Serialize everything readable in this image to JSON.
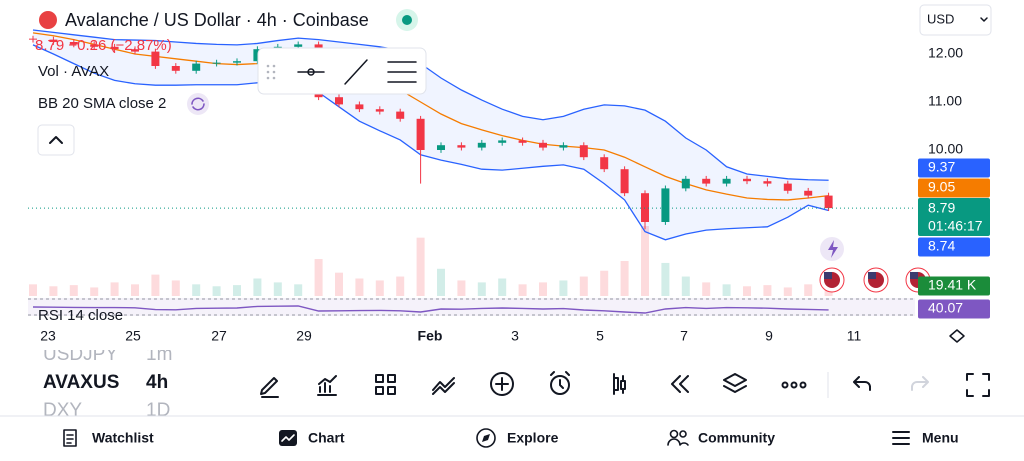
{
  "header": {
    "title": "Avalanche / US Dollar · 4h · Coinbase",
    "price_change": "8.79 −0.26 (−2.87%)",
    "volume_label": "Vol · AVAX",
    "bb_label": "BB 20 SMA close 2",
    "rsi_label": "RSI 14 close",
    "currency": "USD",
    "countdown": "01:46:17"
  },
  "chart": {
    "type": "candlestick",
    "yticks": [
      {
        "value": 12,
        "label": "12.00"
      },
      {
        "value": 11,
        "label": "11.00"
      },
      {
        "value": 10,
        "label": "10.00"
      }
    ],
    "x_labels": [
      "23",
      "25",
      "27",
      "29",
      "Feb",
      "3",
      "5",
      "7",
      "9",
      "11"
    ],
    "open": [
      12.32,
      12.3,
      12.25,
      12.2,
      12.15,
      12.1,
      12.05,
      11.75,
      11.65,
      11.8,
      11.82,
      11.85,
      12.1,
      12.15,
      12.2,
      11.1,
      10.95,
      10.85,
      10.8,
      10.65,
      10.0,
      10.1,
      10.05,
      10.15,
      10.2,
      10.15,
      10.05,
      10.1,
      9.85,
      9.6,
      9.1,
      8.5,
      9.2,
      9.4,
      9.3,
      9.4,
      9.35,
      9.3,
      9.15,
      9.05
    ],
    "high": [
      12.38,
      12.36,
      12.31,
      12.26,
      12.21,
      12.16,
      12.11,
      11.81,
      11.86,
      11.88,
      11.91,
      12.16,
      12.21,
      12.26,
      12.26,
      11.16,
      11.01,
      10.91,
      10.86,
      10.71,
      10.16,
      10.16,
      10.21,
      10.26,
      10.26,
      10.21,
      10.16,
      10.16,
      9.91,
      9.66,
      9.16,
      9.26,
      9.46,
      9.46,
      9.46,
      9.46,
      9.41,
      9.36,
      9.21,
      9.11
    ],
    "low": [
      12.24,
      12.19,
      12.14,
      12.09,
      12.04,
      11.99,
      11.69,
      11.59,
      11.59,
      11.74,
      11.76,
      11.79,
      12.04,
      12.09,
      11.04,
      10.89,
      10.79,
      10.74,
      10.59,
      9.3,
      9.94,
      9.99,
      9.99,
      10.09,
      10.09,
      9.99,
      9.99,
      9.79,
      9.54,
      9.04,
      8.35,
      8.44,
      9.14,
      9.24,
      9.24,
      9.29,
      9.24,
      9.09,
      8.99,
      8.73
    ],
    "close": [
      12.3,
      12.25,
      12.2,
      12.15,
      12.1,
      12.05,
      11.75,
      11.65,
      11.8,
      11.82,
      11.85,
      12.1,
      12.15,
      12.2,
      11.1,
      10.95,
      10.85,
      10.8,
      10.65,
      10.0,
      10.1,
      10.05,
      10.15,
      10.2,
      10.15,
      10.05,
      10.1,
      9.85,
      9.6,
      9.1,
      8.5,
      9.2,
      9.4,
      9.3,
      9.4,
      9.35,
      9.3,
      9.15,
      9.05,
      8.79
    ],
    "up_color": "#089981",
    "down_color": "#f23645",
    "bb": {
      "upper": [
        12.5,
        12.45,
        12.4,
        12.35,
        12.3,
        12.29,
        12.28,
        12.25,
        12.22,
        12.2,
        12.19,
        12.22,
        12.28,
        12.33,
        12.3,
        12.25,
        12.2,
        12.15,
        12.08,
        11.8,
        11.5,
        11.25,
        11.04,
        10.85,
        10.7,
        10.63,
        10.7,
        10.85,
        10.94,
        10.92,
        10.83,
        10.6,
        10.25,
        10.0,
        9.65,
        9.5,
        9.45,
        9.4,
        9.38,
        9.37
      ],
      "middle": [
        12.44,
        12.38,
        12.3,
        12.2,
        12.1,
        12.0,
        11.95,
        11.9,
        11.85,
        11.8,
        11.78,
        11.8,
        11.85,
        11.9,
        11.85,
        11.7,
        11.55,
        11.4,
        11.25,
        11.0,
        10.75,
        10.55,
        10.42,
        10.3,
        10.2,
        10.12,
        10.08,
        10.05,
        10.0,
        9.85,
        9.65,
        9.45,
        9.3,
        9.17,
        9.08,
        9.0,
        8.97,
        8.96,
        9.0,
        9.05
      ],
      "lower": [
        12.19,
        12.0,
        11.8,
        11.6,
        11.45,
        11.38,
        11.35,
        11.35,
        11.36,
        11.36,
        11.36,
        11.4,
        11.42,
        11.45,
        11.2,
        10.9,
        10.6,
        10.4,
        10.21,
        9.9,
        9.79,
        9.7,
        9.6,
        9.58,
        9.62,
        9.66,
        9.69,
        9.6,
        9.3,
        8.96,
        8.3,
        8.13,
        8.25,
        8.33,
        8.36,
        8.38,
        8.4,
        8.6,
        8.85,
        8.74
      ],
      "band_color": "#2962ff",
      "middle_color": "#f57c00"
    },
    "volume": {
      "values": [
        30,
        25,
        28,
        22,
        35,
        30,
        55,
        40,
        30,
        25,
        28,
        45,
        35,
        30,
        95,
        60,
        45,
        40,
        50,
        150,
        70,
        40,
        35,
        45,
        30,
        35,
        40,
        50,
        65,
        90,
        180,
        85,
        50,
        35,
        30,
        25,
        28,
        22,
        30,
        19.41
      ],
      "value_labels": {
        "39": "19.41 K"
      },
      "color": "#089981"
    },
    "rsi": {
      "values": [
        55,
        54,
        53,
        52,
        52,
        51,
        42,
        41,
        48,
        49,
        50,
        58,
        59,
        60,
        35,
        36,
        37,
        38,
        36,
        30,
        45,
        44,
        48,
        50,
        48,
        45,
        47,
        40,
        36,
        30,
        25,
        45,
        52,
        48,
        52,
        51,
        49,
        45,
        43,
        40.07
      ],
      "color": "#7e57c2"
    }
  },
  "symbols": [
    {
      "name": "USDJPY",
      "interval": "1m"
    },
    {
      "name": "AVAXUS",
      "interval": "4h"
    },
    {
      "name": "DXY",
      "interval": "1D"
    }
  ],
  "nav": [
    "Watchlist",
    "Chart",
    "Explore",
    "Community",
    "Menu"
  ]
}
